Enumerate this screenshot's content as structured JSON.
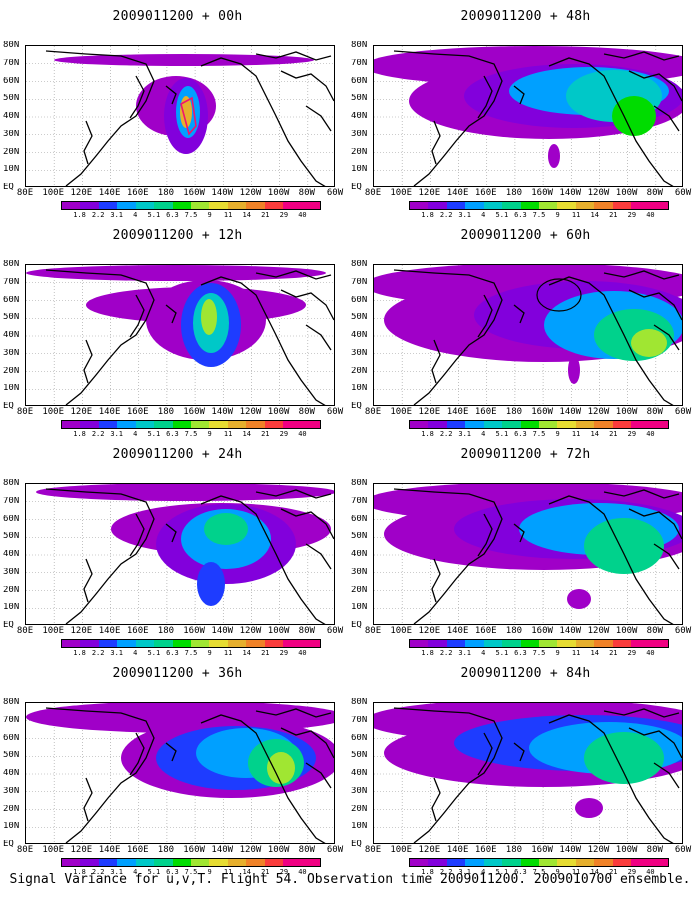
{
  "panels": [
    {
      "title": "2009011200 + 00h"
    },
    {
      "title": "2009011200 + 12h"
    },
    {
      "title": "2009011200 + 24h"
    },
    {
      "title": "2009011200 + 36h"
    },
    {
      "title": "2009011200 + 48h"
    },
    {
      "title": "2009011200 + 60h"
    },
    {
      "title": "2009011200 + 72h"
    },
    {
      "title": "2009011200 + 84h"
    }
  ],
  "lat_labels": [
    "80N",
    "70N",
    "60N",
    "50N",
    "40N",
    "30N",
    "20N",
    "10N",
    "EQ"
  ],
  "lon_labels": [
    "80E",
    "100E",
    "120E",
    "140E",
    "160E",
    "180",
    "160W",
    "140W",
    "120W",
    "100W",
    "80W",
    "60W"
  ],
  "colorbar_values": [
    "1.8",
    "2.2",
    "3.1",
    "4",
    "5.1",
    "6.3",
    "7.5",
    "9",
    "11",
    "14",
    "21",
    "29",
    "40"
  ],
  "colorbar_colors": [
    "#a000c8",
    "#8200dc",
    "#1e3cff",
    "#00a0ff",
    "#00c8c8",
    "#00d28c",
    "#00dc00",
    "#a0e632",
    "#e6dc32",
    "#e6af2d",
    "#f08228",
    "#fa3c3c",
    "#f00082"
  ],
  "caption": "Signal Variance for u,v,T. Flight 54. Observation time 2009011200. 2009010700 ensemble."
}
